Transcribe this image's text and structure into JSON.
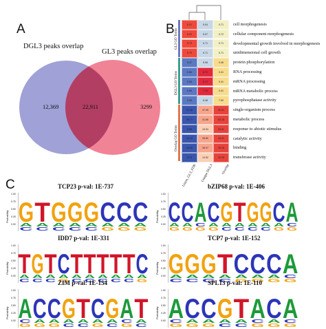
{
  "panels": {
    "a": "A",
    "b": "B",
    "c": "C"
  },
  "venn": {
    "left_label": "DGL3 peaks overlap",
    "right_label": "GL3 peaks overlap",
    "left_only": "12,369",
    "overlap": "22,911",
    "right_only": "3299",
    "colors": {
      "left": "#8f90cf",
      "right": "#ee6d85",
      "overlap": "#b23f63"
    }
  },
  "heatmap": {
    "groups": [
      "GL3 GO Terms",
      "DGL3 GO Terms",
      "Overlap GO Terms"
    ],
    "columns": [
      "Union_GL3_FDR",
      "Unique DGL3",
      "Overlap"
    ],
    "rows": [
      {
        "label": "cell morphogenesis",
        "values": [
          "6.21",
          "5.04",
          "0.71"
        ],
        "colors": [
          "#ee4a3c",
          "#c8d7e6",
          "#f2f0c4"
        ]
      },
      {
        "label": "cellular component morphogenesis",
        "values": [
          "6.20",
          "5.07",
          "0.72"
        ],
        "colors": [
          "#ee4a3c",
          "#c8d7e6",
          "#f2f0c4"
        ]
      },
      {
        "label": "developmental growth involved in morphogenesis",
        "values": [
          "5.79",
          "0.71",
          "0.71"
        ],
        "colors": [
          "#ee4a3c",
          "#c8d7e6",
          "#f2f0c4"
        ]
      },
      {
        "label": "unidimensional cell growth",
        "values": [
          "5.79",
          "0.71",
          "0.71"
        ],
        "colors": [
          "#ee4a3c",
          "#c8d7e6",
          "#f2f0c4"
        ]
      },
      {
        "label": "protein phosphorylation",
        "values": [
          "5.47",
          "5.98",
          "0.46"
        ],
        "colors": [
          "#5b78c2",
          "#c8d7e6",
          "#f7dc8c"
        ]
      },
      {
        "label": "RNA processing",
        "values": [
          "0.66",
          "6.72",
          "0.41"
        ],
        "colors": [
          "#5b78c2",
          "#e1293c",
          "#f7dc8c"
        ]
      },
      {
        "label": "mRNA processing",
        "values": [
          "0.66",
          "6.72",
          "0.41"
        ],
        "colors": [
          "#5b78c2",
          "#e1293c",
          "#f7dc8c"
        ]
      },
      {
        "label": "mRNA metabolic process",
        "values": [
          "0.66",
          "7.15",
          "0.41"
        ],
        "colors": [
          "#5b78c2",
          "#e1293c",
          "#f7dc8c"
        ]
      },
      {
        "label": "pyrophosphatase activity",
        "values": [
          "0.06",
          "6.38",
          "7.50"
        ],
        "colors": [
          "#5b78c2",
          "#c8d7e6",
          "#f7dc8c"
        ]
      },
      {
        "label": "single-organism process",
        "values": [
          "12.30",
          "47.95",
          "50.94"
        ],
        "colors": [
          "#3a56ad",
          "#f6a58c",
          "#e7433b"
        ]
      },
      {
        "label": "metabolic process",
        "values": [
          "16.77",
          "31.86",
          "62.18"
        ],
        "colors": [
          "#3a56ad",
          "#f6a58c",
          "#e7433b"
        ]
      },
      {
        "label": "response to abiotic stimulus",
        "values": [
          "5.08",
          "15.54",
          "33.41"
        ],
        "colors": [
          "#3a56ad",
          "#fbd0b6",
          "#e7433b"
        ]
      },
      {
        "label": "catalytic activity",
        "values": [
          "14.10",
          "28.80",
          "44.41"
        ],
        "colors": [
          "#3a56ad",
          "#f6a58c",
          "#e7433b"
        ]
      },
      {
        "label": "binding",
        "values": [
          "19.60",
          "36.97",
          "28.18"
        ],
        "colors": [
          "#3a56ad",
          "#f6a58c",
          "#e7433b"
        ]
      },
      {
        "label": "transferase activity",
        "values": [
          "5.73",
          "14.52",
          "32.25"
        ],
        "colors": [
          "#3a56ad",
          "#fbd0b6",
          "#e7433b"
        ]
      }
    ]
  },
  "motifs": {
    "ylabel": "Probability",
    "yticks": [
      "1.00",
      "0.75",
      "0.50",
      "0.25",
      "0.00"
    ],
    "items": [
      {
        "name": "TCP23",
        "pval": "p-val: 1E-737",
        "letters": [
          "G",
          "T",
          "G",
          "G",
          "G",
          "C",
          "C",
          "C"
        ]
      },
      {
        "name": "bZIP68",
        "pval": "p-val: 1E-406",
        "letters": [
          "C",
          "C",
          "A",
          "C",
          "G",
          "T",
          "G",
          "G",
          "C",
          "A"
        ]
      },
      {
        "name": "IDD7",
        "pval": "p-val: 1E-331",
        "letters": [
          "T",
          "G",
          "T",
          "C",
          "T",
          "T",
          "T",
          "T",
          "T",
          "C"
        ]
      },
      {
        "name": "TCP7",
        "pval": "p-val: 1E-152",
        "letters": [
          "G",
          "G",
          "G",
          "T",
          "C",
          "C",
          "C",
          "A"
        ]
      },
      {
        "name": "ZIM",
        "pval": "p-val: 1E-154",
        "letters": [
          "A",
          "C",
          "C",
          "G",
          "T",
          "C",
          "G",
          "A",
          "T"
        ]
      },
      {
        "name": "SPL13",
        "pval": "p-val: 1E-110",
        "letters": [
          "A",
          "C",
          "C",
          "G",
          "T",
          "A",
          "C",
          "A"
        ]
      }
    ],
    "base_colors": {
      "A": "#1d9a3a",
      "C": "#2c35b8",
      "G": "#f2a20f",
      "T": "#d1162a"
    }
  }
}
